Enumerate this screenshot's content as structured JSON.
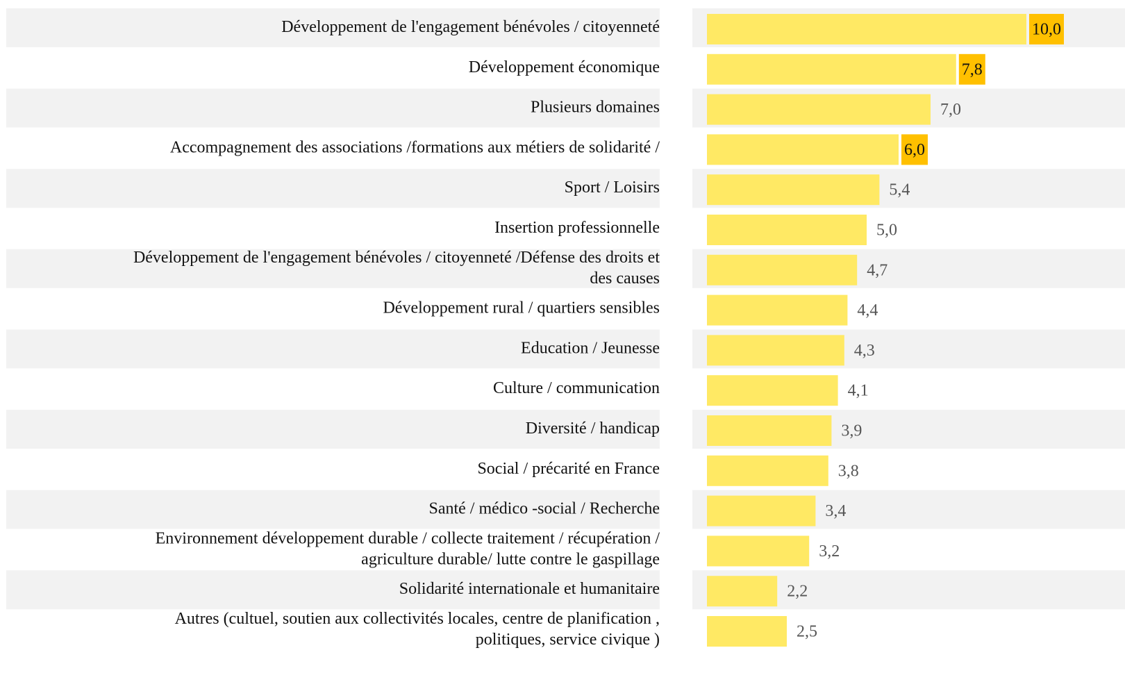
{
  "chart_data": {
    "type": "bar",
    "orientation": "horizontal",
    "categories": [
      "Développement de l'engagement bénévoles / citoyenneté",
      "Développement économique",
      "Plusieurs domaines",
      "Accompagnement des associations /formations aux métiers  de solidarité /",
      "Sport / Loisirs",
      "Insertion professionnelle",
      "Développement de l'engagement bénévoles / citoyenneté /Défense des droits et\ndes causes",
      "Développement rural / quartiers sensibles",
      "Education / Jeunesse",
      "Culture / communication",
      "Diversité / handicap",
      "Social / précarité en France",
      "Santé / médico -social / Recherche",
      "Environnement développement durable / collecte traitement / récupération /\nagriculture durable/ lutte contre le gaspillage",
      "Solidarité internationale et humanitaire",
      "Autres (cultuel, soutien aux collectivités locales, centre de planification ,\npolitiques, service civique  )"
    ],
    "values": [
      10.0,
      7.8,
      7.0,
      6.0,
      5.4,
      5.0,
      4.7,
      4.4,
      4.3,
      4.1,
      3.9,
      3.8,
      3.4,
      3.2,
      2.2,
      2.5
    ],
    "value_labels": [
      "10,0",
      "7,8",
      "7,0",
      "6,0",
      "5,4",
      "5,0",
      "4,7",
      "4,4",
      "4,3",
      "4,1",
      "3,9",
      "3,8",
      "3,4",
      "3,2",
      "2,2",
      "2,5"
    ],
    "color": "#ffe964",
    "highlight_color": "#ffc000",
    "highlighted": [
      0,
      1,
      3
    ],
    "xlim": [
      0,
      13
    ]
  }
}
